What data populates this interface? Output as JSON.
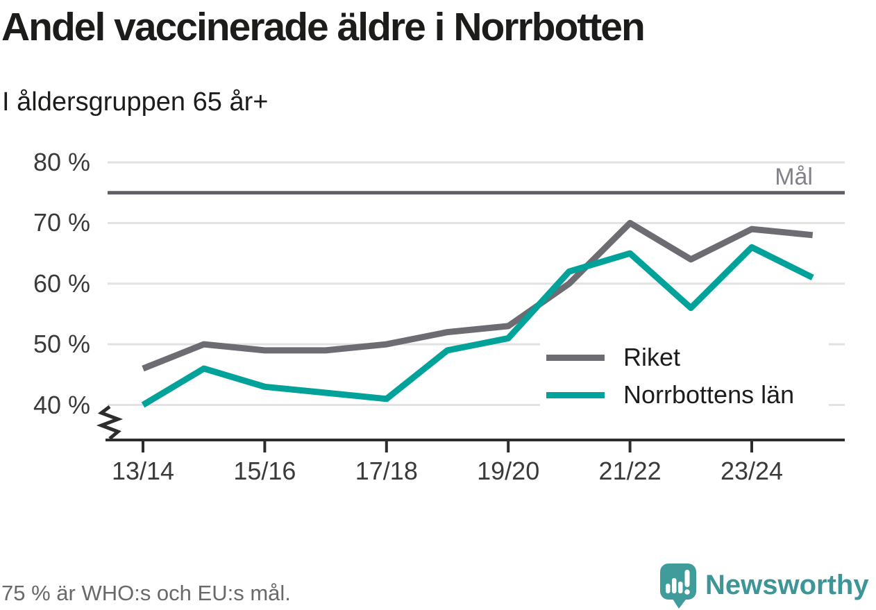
{
  "title": "Andel vaccinerade äldre i Norrbotten",
  "subtitle": "I åldersgruppen 65 år+",
  "footer": {
    "note": "75 % är WHO:s och EU:s mål."
  },
  "branding": {
    "logo_text": "Newsworthy",
    "logo_icon": "speech-bubble-bar-chart",
    "logo_color": "#3e9598"
  },
  "colors": {
    "background": "#ffffff",
    "gridline": "#e2e2e2",
    "axis": "#2d2d2d",
    "goal_line": "#5f5d66",
    "goal_text": "#82808a",
    "tick_text": "#3a3a3a",
    "riket": "#6e6c73",
    "norrbotten": "#00a29a"
  },
  "chart_data": {
    "type": "line",
    "title": "Andel vaccinerade äldre i Norrbotten",
    "subtitle": "I åldersgruppen 65 år+",
    "x": [
      "13/14",
      "14/15",
      "15/16",
      "16/17",
      "17/18",
      "18/19",
      "19/20",
      "20/21",
      "21/22",
      "22/23",
      "23/24",
      "24/25"
    ],
    "x_tick_labels": [
      "13/14",
      "15/16",
      "17/18",
      "19/20",
      "21/22",
      "23/24"
    ],
    "x_tick_indices": [
      0,
      2,
      4,
      6,
      8,
      10
    ],
    "series": [
      {
        "name": "Riket",
        "color": "#6e6c73",
        "values": [
          46,
          50,
          49,
          49,
          50,
          52,
          53,
          60,
          70,
          64,
          69,
          68
        ]
      },
      {
        "name": "Norrbottens län",
        "color": "#00a29a",
        "values": [
          40,
          46,
          43,
          42,
          41,
          49,
          51,
          62,
          65,
          56,
          66,
          61
        ]
      }
    ],
    "goal": {
      "value": 75,
      "label": "Mål"
    },
    "y_ticks": [
      40,
      50,
      60,
      70,
      80
    ],
    "y_tick_suffix": " %",
    "ylim": [
      37,
      80
    ],
    "y_axis_break": true,
    "grid": "horizontal",
    "legend_position": "inside-right",
    "unit": "%"
  }
}
